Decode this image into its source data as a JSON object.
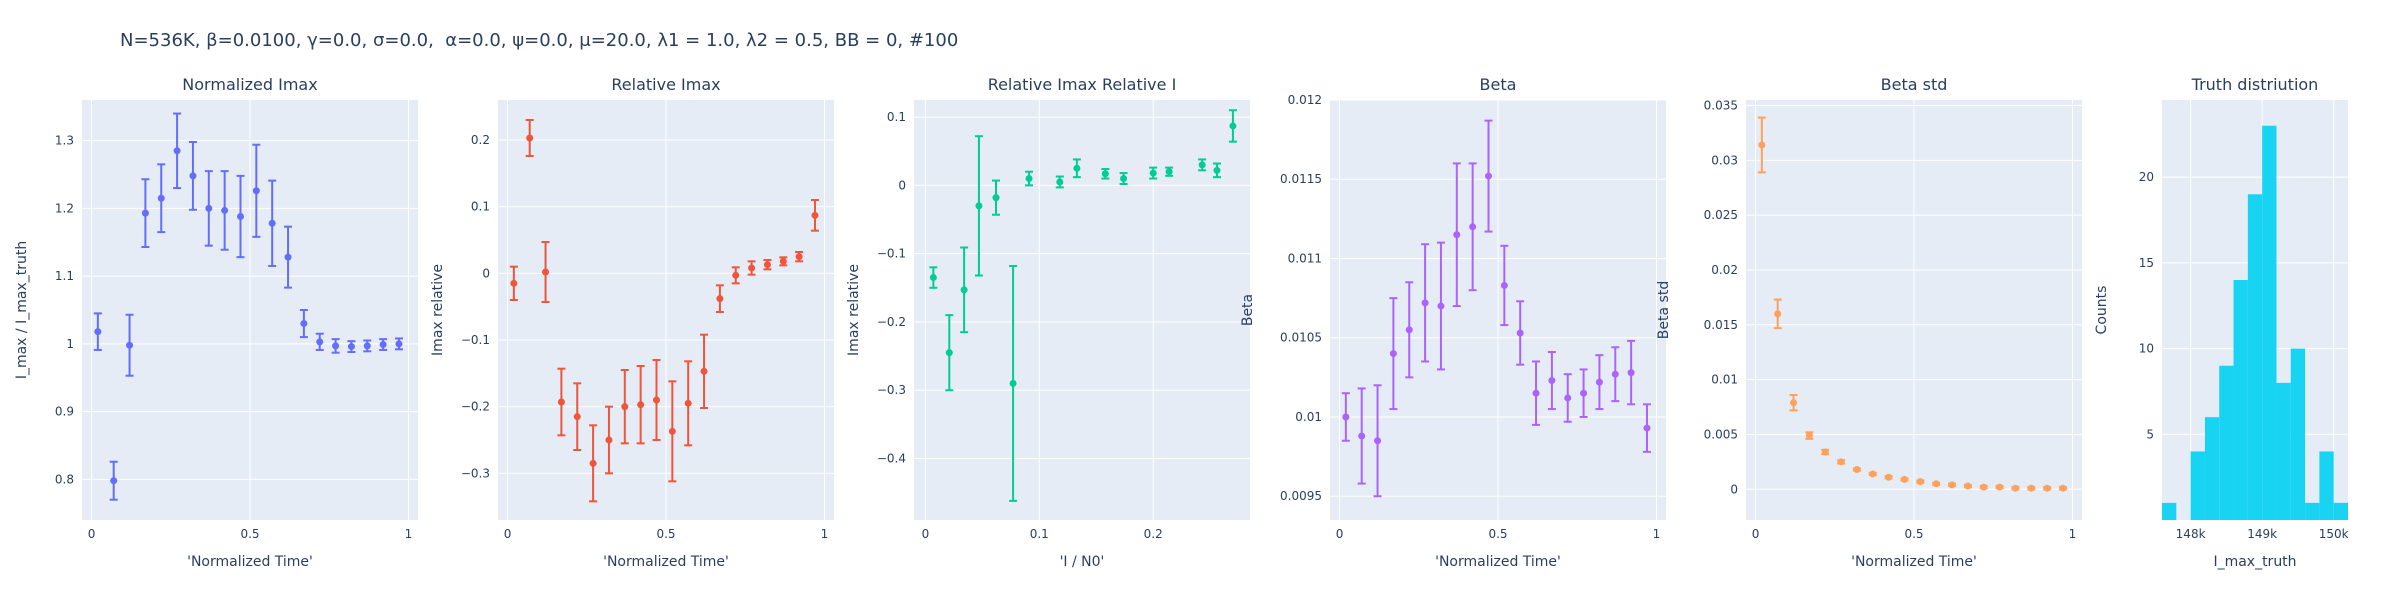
{
  "figure_title": "N=536K, β=0.0100, γ=0.0, σ=0.0,  α=0.0, ψ=0.0, μ=20.0, λ1 = 1.0, λ2 = 0.5, BB = 0, #100",
  "colors": {
    "plot_bg": "#e5ecf6",
    "grid": "#ffffff",
    "text": "#2a3f5f",
    "blue": "#636efa",
    "red": "#ef553b",
    "green": "#00cc96",
    "purple": "#ab63fa",
    "orange": "#ffa15a",
    "cyan": "#19d3f3"
  },
  "chart_data": [
    {
      "type": "scatter",
      "title": "Normalized Imax",
      "xlabel": "'Normalized Time'",
      "ylabel": "I_max / I_max_truth",
      "color": "blue",
      "xlim": [
        -0.03,
        1.03
      ],
      "ylim": [
        0.74,
        1.36
      ],
      "xticks": [
        0,
        0.5,
        1
      ],
      "xticklabels": [
        "0",
        "0.5",
        "1"
      ],
      "yticks": [
        0.8,
        0.9,
        1.0,
        1.1,
        1.2,
        1.3
      ],
      "yticklabels": [
        "0.8",
        "0.9",
        "1",
        "1.1",
        "1.2",
        "1.3"
      ],
      "points": [
        {
          "x": 0.02,
          "y": 1.018,
          "err": 0.027
        },
        {
          "x": 0.07,
          "y": 0.798,
          "err": 0.028
        },
        {
          "x": 0.12,
          "y": 0.998,
          "err": 0.045
        },
        {
          "x": 0.17,
          "y": 1.193,
          "err": 0.05
        },
        {
          "x": 0.22,
          "y": 1.215,
          "err": 0.05
        },
        {
          "x": 0.27,
          "y": 1.285,
          "err": 0.055
        },
        {
          "x": 0.32,
          "y": 1.248,
          "err": 0.05
        },
        {
          "x": 0.37,
          "y": 1.2,
          "err": 0.055
        },
        {
          "x": 0.42,
          "y": 1.197,
          "err": 0.058
        },
        {
          "x": 0.47,
          "y": 1.188,
          "err": 0.06
        },
        {
          "x": 0.52,
          "y": 1.226,
          "err": 0.068
        },
        {
          "x": 0.57,
          "y": 1.178,
          "err": 0.063
        },
        {
          "x": 0.62,
          "y": 1.128,
          "err": 0.045
        },
        {
          "x": 0.67,
          "y": 1.03,
          "err": 0.02
        },
        {
          "x": 0.72,
          "y": 1.003,
          "err": 0.012
        },
        {
          "x": 0.77,
          "y": 0.997,
          "err": 0.01
        },
        {
          "x": 0.82,
          "y": 0.996,
          "err": 0.008
        },
        {
          "x": 0.87,
          "y": 0.997,
          "err": 0.008
        },
        {
          "x": 0.92,
          "y": 0.999,
          "err": 0.008
        },
        {
          "x": 0.97,
          "y": 1.0,
          "err": 0.008
        }
      ]
    },
    {
      "type": "scatter",
      "title": "Relative Imax",
      "xlabel": "'Normalized Time'",
      "ylabel": "Imax relative",
      "color": "red",
      "xlim": [
        -0.03,
        1.03
      ],
      "ylim": [
        -0.37,
        0.26
      ],
      "xticks": [
        0,
        0.5,
        1
      ],
      "xticklabels": [
        "0",
        "0.5",
        "1"
      ],
      "yticks": [
        -0.3,
        -0.2,
        -0.1,
        0,
        0.1,
        0.2
      ],
      "yticklabels": [
        "−0.3",
        "−0.2",
        "−0.1",
        "0",
        "0.1",
        "0.2"
      ],
      "points": [
        {
          "x": 0.02,
          "y": -0.015,
          "err": 0.025
        },
        {
          "x": 0.07,
          "y": 0.203,
          "err": 0.027
        },
        {
          "x": 0.12,
          "y": 0.002,
          "err": 0.045
        },
        {
          "x": 0.17,
          "y": -0.193,
          "err": 0.05
        },
        {
          "x": 0.22,
          "y": -0.215,
          "err": 0.05
        },
        {
          "x": 0.27,
          "y": -0.285,
          "err": 0.057
        },
        {
          "x": 0.32,
          "y": -0.25,
          "err": 0.05
        },
        {
          "x": 0.37,
          "y": -0.2,
          "err": 0.055
        },
        {
          "x": 0.42,
          "y": -0.197,
          "err": 0.058
        },
        {
          "x": 0.47,
          "y": -0.19,
          "err": 0.06
        },
        {
          "x": 0.52,
          "y": -0.237,
          "err": 0.075
        },
        {
          "x": 0.57,
          "y": -0.195,
          "err": 0.063
        },
        {
          "x": 0.62,
          "y": -0.147,
          "err": 0.055
        },
        {
          "x": 0.67,
          "y": -0.038,
          "err": 0.02
        },
        {
          "x": 0.72,
          "y": -0.003,
          "err": 0.012
        },
        {
          "x": 0.77,
          "y": 0.008,
          "err": 0.01
        },
        {
          "x": 0.82,
          "y": 0.013,
          "err": 0.007
        },
        {
          "x": 0.87,
          "y": 0.018,
          "err": 0.006
        },
        {
          "x": 0.92,
          "y": 0.025,
          "err": 0.007
        },
        {
          "x": 0.97,
          "y": 0.087,
          "err": 0.023
        }
      ]
    },
    {
      "type": "scatter",
      "title": "Relative Imax Relative I",
      "xlabel": "'I / N0'",
      "ylabel": "Imax relative",
      "color": "green",
      "xlim": [
        -0.01,
        0.285
      ],
      "ylim": [
        -0.49,
        0.125
      ],
      "xticks": [
        0,
        0.1,
        0.2
      ],
      "xticklabels": [
        "0",
        "0.1",
        "0.2"
      ],
      "yticks": [
        -0.4,
        -0.3,
        -0.2,
        -0.1,
        0,
        0.1
      ],
      "yticklabels": [
        "−0.4",
        "−0.3",
        "−0.2",
        "−0.1",
        "0",
        "0.1"
      ],
      "points": [
        {
          "x": 0.007,
          "y": -0.135,
          "err": 0.015
        },
        {
          "x": 0.021,
          "y": -0.245,
          "err": 0.055
        },
        {
          "x": 0.034,
          "y": -0.153,
          "err": 0.062
        },
        {
          "x": 0.047,
          "y": -0.03,
          "err": 0.102
        },
        {
          "x": 0.062,
          "y": -0.018,
          "err": 0.025
        },
        {
          "x": 0.077,
          "y": -0.29,
          "err": 0.172
        },
        {
          "x": 0.091,
          "y": 0.01,
          "err": 0.01
        },
        {
          "x": 0.118,
          "y": 0.005,
          "err": 0.008
        },
        {
          "x": 0.133,
          "y": 0.025,
          "err": 0.013
        },
        {
          "x": 0.158,
          "y": 0.017,
          "err": 0.007
        },
        {
          "x": 0.174,
          "y": 0.01,
          "err": 0.008
        },
        {
          "x": 0.2,
          "y": 0.018,
          "err": 0.008
        },
        {
          "x": 0.214,
          "y": 0.02,
          "err": 0.006
        },
        {
          "x": 0.243,
          "y": 0.03,
          "err": 0.008
        },
        {
          "x": 0.256,
          "y": 0.022,
          "err": 0.01
        },
        {
          "x": 0.27,
          "y": 0.087,
          "err": 0.023
        }
      ]
    },
    {
      "type": "scatter",
      "title": "Beta",
      "xlabel": "'Normalized Time'",
      "ylabel": "Beta",
      "color": "purple",
      "xlim": [
        -0.03,
        1.03
      ],
      "ylim": [
        0.00935,
        0.012
      ],
      "xticks": [
        0,
        0.5,
        1
      ],
      "xticklabels": [
        "0",
        "0.5",
        "1"
      ],
      "yticks": [
        0.0095,
        0.01,
        0.0105,
        0.011,
        0.0115,
        0.012
      ],
      "yticklabels": [
        "0.0095",
        "0.01",
        "0.0105",
        "0.011",
        "0.0115",
        "0.012"
      ],
      "points": [
        {
          "x": 0.02,
          "y": 0.01,
          "err": 0.00015
        },
        {
          "x": 0.07,
          "y": 0.00988,
          "err": 0.0003
        },
        {
          "x": 0.12,
          "y": 0.00985,
          "err": 0.00035
        },
        {
          "x": 0.17,
          "y": 0.0104,
          "err": 0.00035
        },
        {
          "x": 0.22,
          "y": 0.01055,
          "err": 0.0003
        },
        {
          "x": 0.27,
          "y": 0.01072,
          "err": 0.00037
        },
        {
          "x": 0.32,
          "y": 0.0107,
          "err": 0.0004
        },
        {
          "x": 0.37,
          "y": 0.01115,
          "err": 0.00045
        },
        {
          "x": 0.42,
          "y": 0.0112,
          "err": 0.0004
        },
        {
          "x": 0.47,
          "y": 0.01152,
          "err": 0.00035
        },
        {
          "x": 0.52,
          "y": 0.01083,
          "err": 0.00025
        },
        {
          "x": 0.57,
          "y": 0.01053,
          "err": 0.0002
        },
        {
          "x": 0.62,
          "y": 0.01015,
          "err": 0.0002
        },
        {
          "x": 0.67,
          "y": 0.01023,
          "err": 0.00018
        },
        {
          "x": 0.72,
          "y": 0.01012,
          "err": 0.00015
        },
        {
          "x": 0.77,
          "y": 0.01015,
          "err": 0.00015
        },
        {
          "x": 0.82,
          "y": 0.01022,
          "err": 0.00017
        },
        {
          "x": 0.87,
          "y": 0.01027,
          "err": 0.00017
        },
        {
          "x": 0.92,
          "y": 0.01028,
          "err": 0.0002
        },
        {
          "x": 0.97,
          "y": 0.00993,
          "err": 0.00015
        }
      ]
    },
    {
      "type": "scatter",
      "title": "Beta std",
      "xlabel": "'Normalized Time'",
      "ylabel": "Beta std",
      "color": "orange",
      "xlim": [
        -0.03,
        1.03
      ],
      "ylim": [
        -0.0028,
        0.0355
      ],
      "xticks": [
        0,
        0.5,
        1
      ],
      "xticklabels": [
        "0",
        "0.5",
        "1"
      ],
      "yticks": [
        0,
        0.005,
        0.01,
        0.015,
        0.02,
        0.025,
        0.03,
        0.035
      ],
      "yticklabels": [
        "0",
        "0.005",
        "0.01",
        "0.015",
        "0.02",
        "0.025",
        "0.03",
        "0.035"
      ],
      "points": [
        {
          "x": 0.02,
          "y": 0.0314,
          "err": 0.0025
        },
        {
          "x": 0.07,
          "y": 0.016,
          "err": 0.0013
        },
        {
          "x": 0.12,
          "y": 0.0079,
          "err": 0.0007
        },
        {
          "x": 0.17,
          "y": 0.0049,
          "err": 0.0003
        },
        {
          "x": 0.22,
          "y": 0.0034,
          "err": 0.0002
        },
        {
          "x": 0.27,
          "y": 0.0025,
          "err": 0.00015
        },
        {
          "x": 0.32,
          "y": 0.0018,
          "err": 0.0001
        },
        {
          "x": 0.37,
          "y": 0.0014,
          "err": 0.0001
        },
        {
          "x": 0.42,
          "y": 0.0011,
          "err": 0.0001
        },
        {
          "x": 0.47,
          "y": 0.0009,
          "err": 0.0001
        },
        {
          "x": 0.52,
          "y": 0.0007,
          "err": 0.0001
        },
        {
          "x": 0.57,
          "y": 0.0005,
          "err": 0.0001
        },
        {
          "x": 0.62,
          "y": 0.0004,
          "err": 0.0001
        },
        {
          "x": 0.67,
          "y": 0.0003,
          "err": 0.0001
        },
        {
          "x": 0.72,
          "y": 0.0002,
          "err": 0.0001
        },
        {
          "x": 0.77,
          "y": 0.0002,
          "err": 0.0001
        },
        {
          "x": 0.82,
          "y": 0.0001,
          "err": 0.0001
        },
        {
          "x": 0.87,
          "y": 0.0001,
          "err": 0.0001
        },
        {
          "x": 0.92,
          "y": 0.0001,
          "err": 0.0001
        },
        {
          "x": 0.97,
          "y": 0.0001,
          "err": 0.0001
        }
      ]
    },
    {
      "type": "bar",
      "title": "Truth distriution",
      "xlabel": "I_max_truth",
      "ylabel": "Counts",
      "color": "cyan",
      "xlim": [
        147600,
        150200
      ],
      "ylim": [
        0,
        24.5
      ],
      "xticks": [
        148000,
        149000,
        150000
      ],
      "xticklabels": [
        "148k",
        "149k",
        "150k"
      ],
      "yticks": [
        5,
        10,
        15,
        20
      ],
      "yticklabels": [
        "5",
        "10",
        "15",
        "20"
      ],
      "bin_width": 200,
      "bins": [
        {
          "x0": 147600,
          "count": 1
        },
        {
          "x0": 147800,
          "count": 0
        },
        {
          "x0": 148000,
          "count": 4
        },
        {
          "x0": 148200,
          "count": 6
        },
        {
          "x0": 148400,
          "count": 9
        },
        {
          "x0": 148600,
          "count": 14
        },
        {
          "x0": 148800,
          "count": 19
        },
        {
          "x0": 149000,
          "count": 23
        },
        {
          "x0": 149200,
          "count": 8
        },
        {
          "x0": 149400,
          "count": 10
        },
        {
          "x0": 149600,
          "count": 1
        },
        {
          "x0": 149800,
          "count": 4
        },
        {
          "x0": 150000,
          "count": 1
        }
      ]
    }
  ]
}
